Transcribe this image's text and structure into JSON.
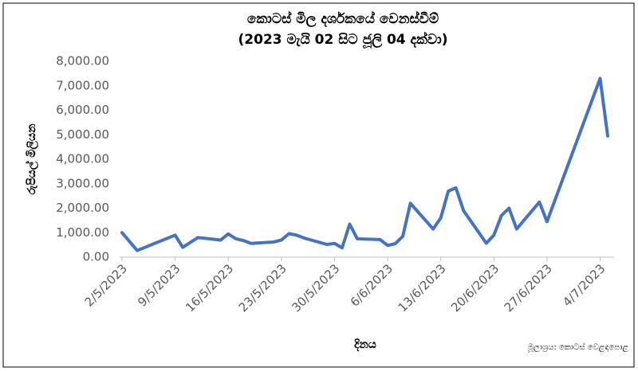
{
  "chart_data": {
    "type": "line",
    "title": "කොටස් මිල දර්ශකයේ වෙනස්වීම්",
    "subtitle": "(2023 මැයි 02 සිට ජූලි 04 දක්වා)",
    "y_label": "රුපියල් මිලියන",
    "x_label": "දිනය",
    "source": "මූලාශ්‍රය: කොටස් වෙළඳපොළ",
    "x": [
      "2023-05-02",
      "2023-05-04",
      "2023-05-09",
      "2023-05-10",
      "2023-05-12",
      "2023-05-15",
      "2023-05-16",
      "2023-05-17",
      "2023-05-18",
      "2023-05-19",
      "2023-05-22",
      "2023-05-23",
      "2023-05-24",
      "2023-05-25",
      "2023-05-26",
      "2023-05-29",
      "2023-05-30",
      "2023-05-31",
      "2023-06-01",
      "2023-06-02",
      "2023-06-05",
      "2023-06-06",
      "2023-06-07",
      "2023-06-08",
      "2023-06-09",
      "2023-06-12",
      "2023-06-13",
      "2023-06-14",
      "2023-06-15",
      "2023-06-16",
      "2023-06-19",
      "2023-06-20",
      "2023-06-21",
      "2023-06-22",
      "2023-06-23",
      "2023-06-26",
      "2023-06-27",
      "2023-07-04",
      "2023-07-05"
    ],
    "series": [
      {
        "name": "කොටස් මිල දර්ශකය",
        "color": "#4472c4",
        "values": [
          1000,
          270,
          900,
          400,
          800,
          700,
          950,
          750,
          680,
          560,
          620,
          700,
          960,
          900,
          780,
          520,
          560,
          380,
          1350,
          750,
          720,
          480,
          550,
          850,
          2200,
          1150,
          1600,
          2700,
          2830,
          1900,
          570,
          900,
          1700,
          2000,
          1150,
          2250,
          1450,
          7300,
          4950
        ]
      }
    ],
    "xlim": [
      "2023-05-02",
      "2023-07-05"
    ],
    "xticks": [
      {
        "value": "2023-05-02",
        "label": "2/5/2023"
      },
      {
        "value": "2023-05-09",
        "label": "9/5/2023"
      },
      {
        "value": "2023-05-16",
        "label": "16/5/2023"
      },
      {
        "value": "2023-05-23",
        "label": "23/5/2023"
      },
      {
        "value": "2023-05-30",
        "label": "30/5/2023"
      },
      {
        "value": "2023-06-06",
        "label": "6/6/2023"
      },
      {
        "value": "2023-06-13",
        "label": "13/6/2023"
      },
      {
        "value": "2023-06-20",
        "label": "20/6/2023"
      },
      {
        "value": "2023-06-27",
        "label": "27/6/2023"
      },
      {
        "value": "2023-07-04",
        "label": "4/7/2023"
      }
    ],
    "ylim": [
      0,
      8000
    ],
    "yticks": [
      {
        "value": 0,
        "label": "0.00"
      },
      {
        "value": 1000,
        "label": "1,000.00"
      },
      {
        "value": 2000,
        "label": "2,000.00"
      },
      {
        "value": 3000,
        "label": "3,000.00"
      },
      {
        "value": 4000,
        "label": "4,000.00"
      },
      {
        "value": 5000,
        "label": "5,000.00"
      },
      {
        "value": 6000,
        "label": "6,000.00"
      },
      {
        "value": 7000,
        "label": "7,000.00"
      },
      {
        "value": 8000,
        "label": "8,000.00"
      }
    ],
    "grid": false
  }
}
